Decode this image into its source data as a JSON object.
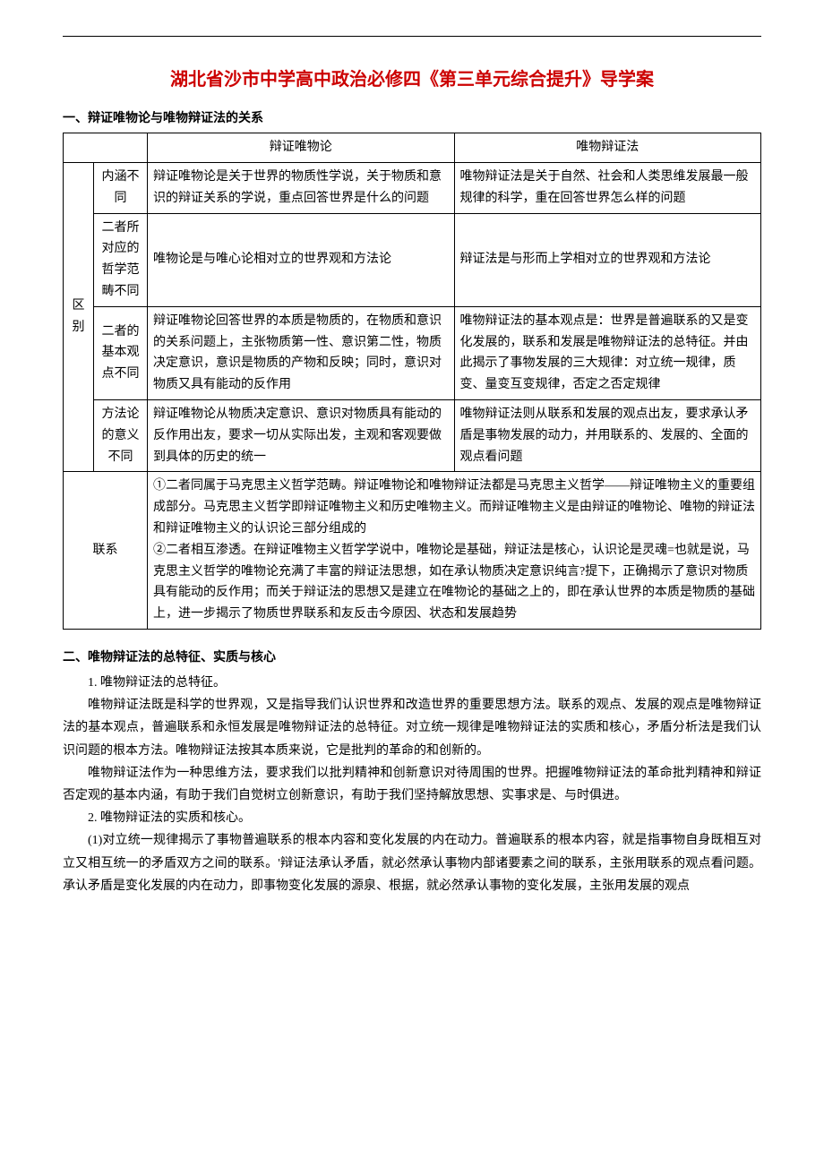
{
  "title": "湖北省沙市中学高中政治必修四《第三单元综合提升》导学案",
  "section1_heading": "一、辩证唯物论与唯物辩证法的关系",
  "table": {
    "hdr_col1": "辩证唯物论",
    "hdr_col2": "唯物辩证法",
    "diff_label": "区别",
    "row1_label": "内涵不同",
    "row1_c1": "辩证唯物论是关于世界的物质性学说，关于物质和意识的辩证关系的学说，重点回答世界是什么的问题",
    "row1_c2": "唯物辩证法是关于自然、社会和人类思维发展最一般规律的科学，重在回答世界怎么样的问题",
    "row2_label": "二者所对应的哲学范畴不同",
    "row2_c1": "唯物论是与唯心论相对立的世界观和方法论",
    "row2_c2": "辩证法是与形而上学相对立的世界观和方法论",
    "row3_label": "二者的基本观点不同",
    "row3_c1": "辩证唯物论回答世界的本质是物质的，在物质和意识的关系问题上，主张物质第一性、意识第二性，物质决定意识，意识是物质的产物和反映；同时，意识对物质又具有能动的反作用",
    "row3_c2": "唯物辩证法的基本观点是：世界是普遍联系的又是变化发展的，联系和发展是唯物辩证法的总特征。并由此揭示了事物发展的三大规律：对立统一规律，质变、量变互变规律，否定之否定规律",
    "row4_label": "方法论的意义不同",
    "row4_c1": "辩证唯物论从物质决定意识、意识对物质具有能动的反作用出友，要求一切从实际出发，主观和客观要做到具体的历史的统一",
    "row4_c2": "唯物辩证法则从联系和发展的观点出友，要求承认矛盾是事物发展的动力，并用联系的、发展的、全面的观点看问题",
    "link_label": "联系",
    "link_text": "①二者同属于马克思主义哲学范畴。辩证唯物论和唯物辩证法都是马克思主义哲学——辩证唯物主义的重要组成部分。马克思主义哲学即辩证唯物主义和历史唯物主义。而辩证唯物主义是由辩证的唯物论、唯物的辩证法和辩证唯物主义的认识论三部分组成的\n②二者相互渗透。在辩证唯物主义哲学学说中，唯物论是基础，辩证法是核心，认识论是灵魂=也就是说，马克思主义哲学的唯物论充满了丰富的辩证法思想，如在承认物质决定意识纯言?提下，正确揭示了意识对物质具有能动的反作用；而关于辩证法的思想又是建立在唯物论的基础之上的，即在承认世界的本质是物质的基础上，进一步揭示了物质世界联系和友反击今原因、状态和发展趋势"
  },
  "section2_heading": "二、唯物辩证法的总特征、实质与核心",
  "s2_num1": "1. 唯物辩证法的总特征。",
  "s2_p1": "唯物辩证法既是科学的世界观，又是指导我们认识世界和改造世界的重要思想方法。联系的观点、发展的观点是唯物辩证法的基本观点，普遍联系和永恒发展是唯物辩证法的总特征。对立统一规律是唯物辩证法的实质和核心，矛盾分析法是我们认识问题的根本方法。唯物辩证法按其本质来说，它是批判的革命的和创新的。",
  "s2_p2": "唯物辩证法作为一种思维方法，要求我们以批判精神和创新意识对待周围的世界。把握唯物辩证法的革命批判精神和辩证否定观的基本内涵，有助于我们自觉树立创新意识，有助于我们坚持解放思想、实事求是、与时俱进。",
  "s2_num2": "2. 唯物辩证法的实质和核心。",
  "s2_p3": "(1)对立统一规律揭示了事物普遍联系的根本内容和变化发展的内在动力。普遍联系的根本内容，就是指事物自身既相互对立又相互统一的矛盾双方之间的联系。'辩证法承认矛盾，就必然承认事物内部诸要素之间的联系，主张用联系的观点看问题。承认矛盾是变化发展的内在动力，即事物变化发展的源泉、根据，就必然承认事物的变化发展，主张用发展的观点"
}
